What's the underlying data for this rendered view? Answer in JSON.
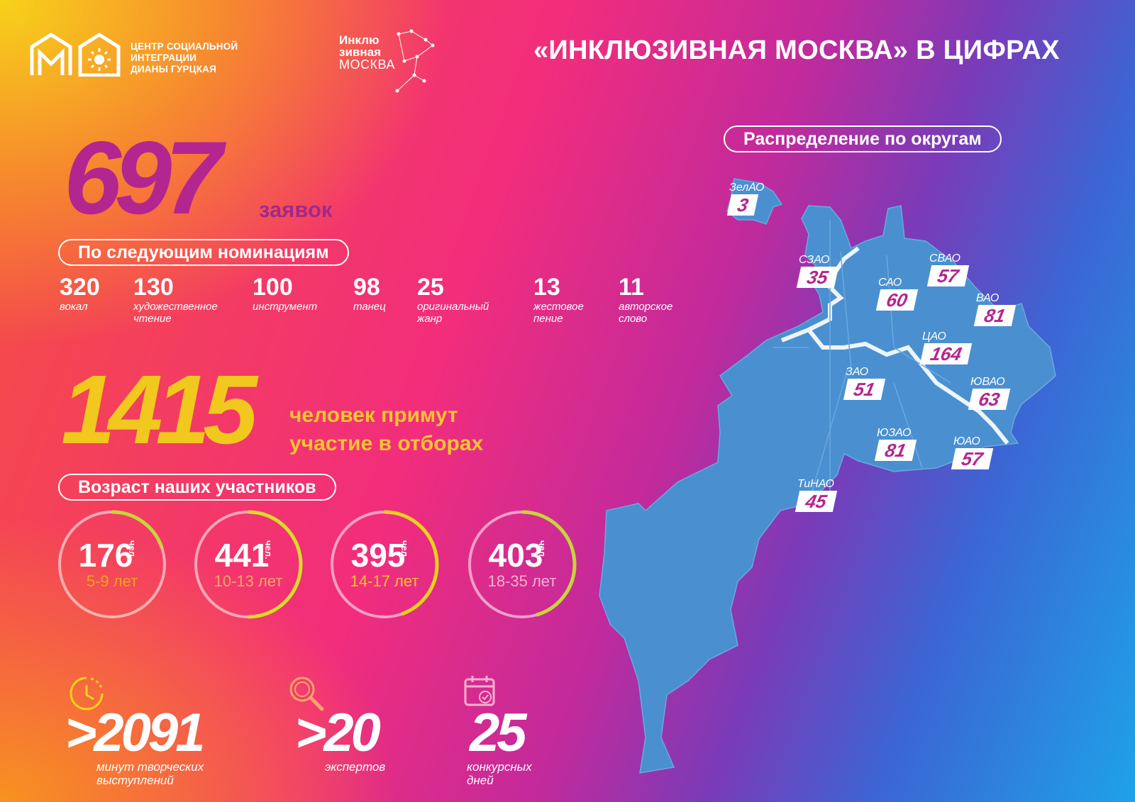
{
  "header": {
    "org_name": [
      "ЦЕНТР СОЦИАЛЬНОЙ",
      "ИНТЕГРАЦИИ",
      "ДИАНЫ ГУРЦКАЯ"
    ],
    "project_logo": [
      "Инклю",
      "зивная",
      "МОСКВА"
    ],
    "title": "«ИНКЛЮЗИВНАЯ МОСКВА» В ЦИФРАХ"
  },
  "applications": {
    "count": "697",
    "label": "заявок"
  },
  "nominations": {
    "heading": "По следующим номинациям",
    "items": [
      {
        "value": "320",
        "label": "вокал"
      },
      {
        "value": "130",
        "label": "художественное чтение"
      },
      {
        "value": "100",
        "label": "инструмент"
      },
      {
        "value": "98",
        "label": "танец"
      },
      {
        "value": "25",
        "label": "оригинальный жанр"
      },
      {
        "value": "13",
        "label": "жестовое пение"
      },
      {
        "value": "11",
        "label": "авторское слово"
      }
    ]
  },
  "participants": {
    "count": "1415",
    "label_line1": "человек примут",
    "label_line2": "участие в отборах"
  },
  "ages": {
    "heading": "Возраст наших участников",
    "unit": "чел.",
    "items": [
      {
        "value": "176",
        "range": "5-9 лет",
        "share": 0.124,
        "label_color": "#f7a21e"
      },
      {
        "value": "441",
        "range": "10-13 лет",
        "share": 0.312,
        "label_color": "#f7a66a"
      },
      {
        "value": "395",
        "range": "14-17 лет",
        "share": 0.279,
        "label_color": "#f7c430"
      },
      {
        "value": "403",
        "range": "18-35 лет",
        "share": 0.285,
        "label_color": "#f7b0d0"
      }
    ]
  },
  "bottom_stats": [
    {
      "value": ">2091",
      "label": "минут творческих выступлений",
      "icon": "clock-icon"
    },
    {
      "value": ">20",
      "label": "экспертов",
      "icon": "magnifier-icon"
    },
    {
      "value": "25",
      "label": "конкурсных дней",
      "icon": "calendar-check-icon"
    }
  ],
  "districts": {
    "heading": "Распределение по округам",
    "items": [
      {
        "name": "ЗелАО",
        "value": "3"
      },
      {
        "name": "СЗАО",
        "value": "35"
      },
      {
        "name": "САО",
        "value": "60"
      },
      {
        "name": "СВАО",
        "value": "57"
      },
      {
        "name": "ВАО",
        "value": "81"
      },
      {
        "name": "ЦАО",
        "value": "164"
      },
      {
        "name": "ЗАО",
        "value": "51"
      },
      {
        "name": "ЮВАО",
        "value": "63"
      },
      {
        "name": "ЮЗАО",
        "value": "81"
      },
      {
        "name": "ЮАО",
        "value": "57"
      },
      {
        "name": "ТиНАО",
        "value": "45"
      }
    ]
  },
  "colors": {
    "magenta": "#b3268f",
    "yellow": "#f0c81e",
    "map_fill": "#4a90d0"
  }
}
